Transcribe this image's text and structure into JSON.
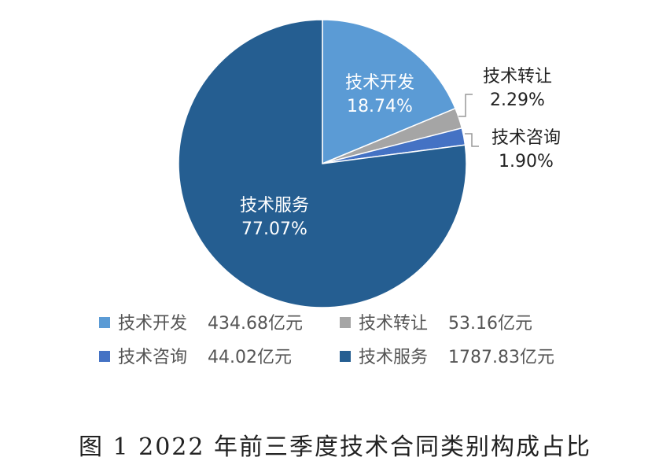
{
  "chart_data": {
    "type": "pie",
    "caption": "图 1  2022 年前三季度技术合同类别构成占比",
    "slices": [
      {
        "name": "技术开发",
        "percent": 18.74,
        "percent_label": "18.74%",
        "legend_value": "434.68亿元",
        "color": "#5B9BD5"
      },
      {
        "name": "技术转让",
        "percent": 2.29,
        "percent_label": "2.29%",
        "legend_value": "53.16亿元",
        "color": "#A5A5A5"
      },
      {
        "name": "技术咨询",
        "percent": 1.9,
        "percent_label": "1.90%",
        "legend_value": "44.02亿元",
        "color": "#4472C4"
      },
      {
        "name": "技术服务",
        "percent": 77.07,
        "percent_label": "77.07%",
        "legend_value": "1787.83亿元",
        "color": "#255E91"
      }
    ],
    "legend_position": "bottom"
  }
}
